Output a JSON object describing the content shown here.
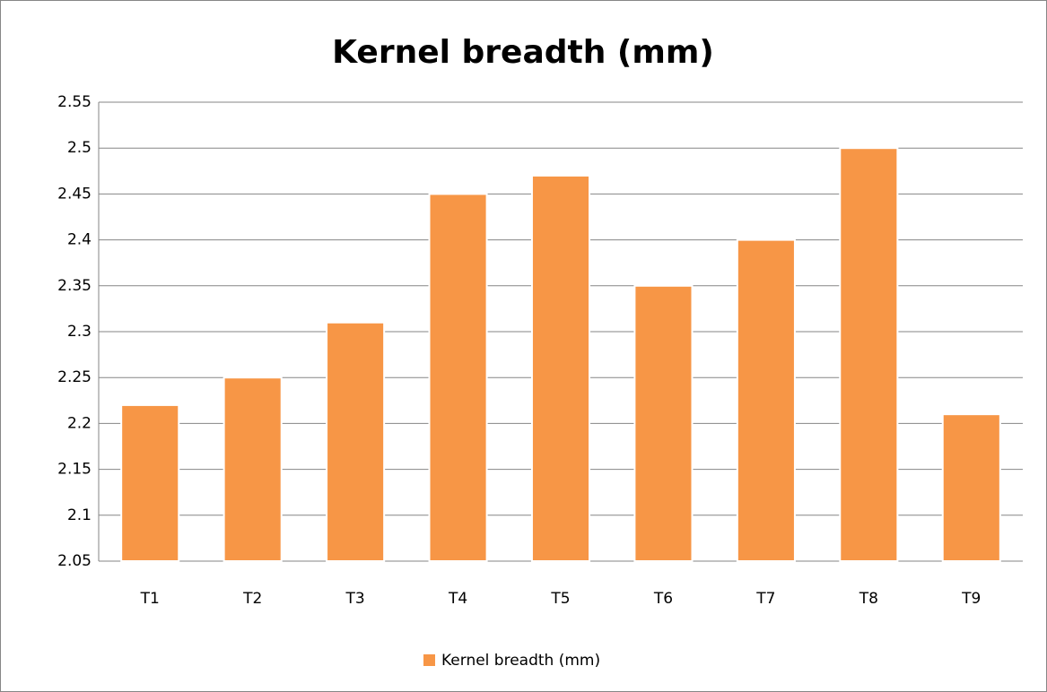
{
  "chart_data": {
    "type": "bar",
    "title": "Kernel breadth (mm)",
    "categories": [
      "T1",
      "T2",
      "T3",
      "T4",
      "T5",
      "T6",
      "T7",
      "T8",
      "T9"
    ],
    "series": [
      {
        "name": "Kernel breadth (mm)",
        "color": "#f79646",
        "values": [
          2.22,
          2.25,
          2.31,
          2.45,
          2.47,
          2.35,
          2.4,
          2.5,
          2.21
        ]
      }
    ],
    "ylim": [
      2.05,
      2.55
    ],
    "yticks": [
      2.05,
      2.1,
      2.15,
      2.2,
      2.25,
      2.3,
      2.35,
      2.4,
      2.45,
      2.5,
      2.55
    ],
    "grid": true,
    "legend": "bottom"
  }
}
